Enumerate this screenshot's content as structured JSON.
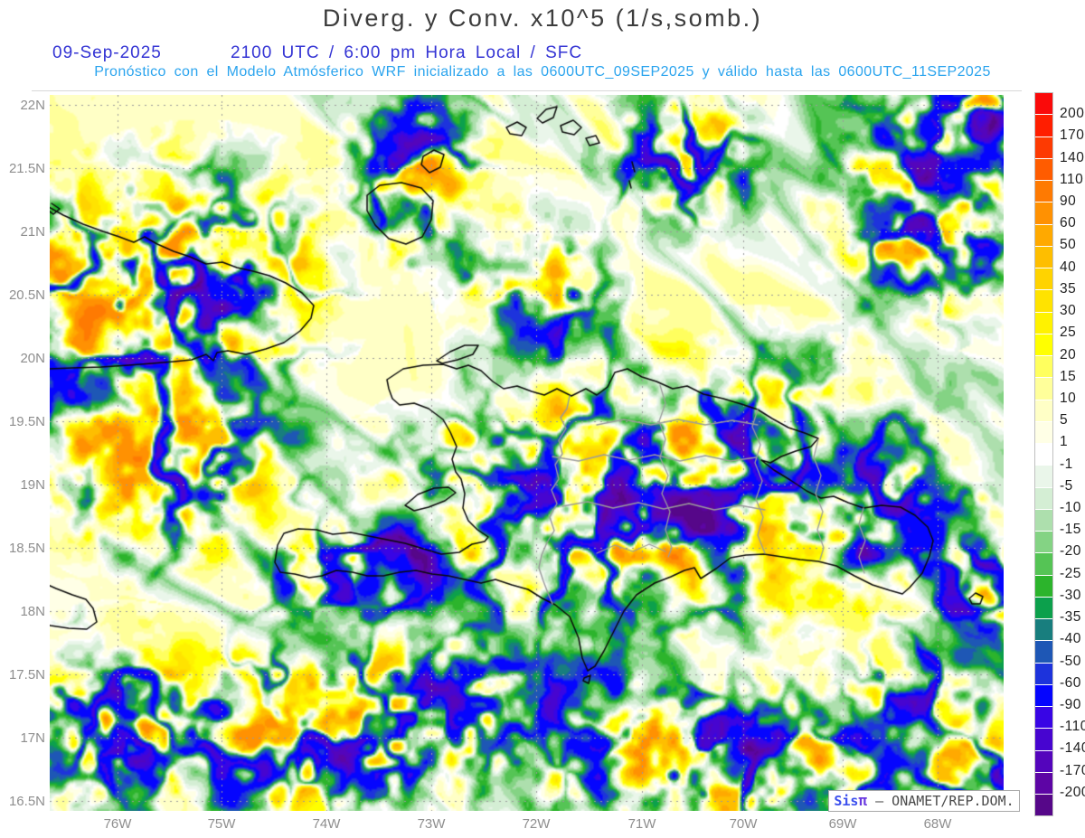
{
  "header": {
    "title": "Diverg. y Conv. x10^5 (1/s,somb.)",
    "date": "09-Sep-2025",
    "time_line": "2100 UTC / 6:00 pm Hora Local / SFC",
    "subtitle": "Pronóstico con el Modelo Atmósferico WRF inicializado a las 0600UTC_09SEP2025 y válido hasta las  0600UTC_11SEP2025",
    "title_color": "#3c3c3c",
    "time_color": "#3434d4",
    "subtitle_color": "#2ba4ee"
  },
  "chart_data": {
    "type": "heatmap",
    "title": "Diverg. y Conv. x10^5 (1/s,somb.)",
    "units": "x10^5 (1/s)",
    "level": "SFC",
    "valid_time": "2100 UTC / 6:00 pm Hora Local",
    "grid": "dotted",
    "legend_position": "right",
    "y_ticks": [
      "22N",
      "21.5N",
      "21N",
      "20.5N",
      "20N",
      "19.5N",
      "19N",
      "18.5N",
      "18N",
      "17.5N",
      "17N",
      "16.5N"
    ],
    "x_ticks": [
      "76W",
      "75W",
      "74W",
      "73W",
      "72W",
      "71W",
      "70W",
      "69W",
      "68W"
    ],
    "colorbar": {
      "labels": [
        200,
        170,
        140,
        110,
        90,
        60,
        50,
        40,
        35,
        30,
        25,
        20,
        15,
        10,
        5,
        1,
        -1,
        -5,
        -10,
        -15,
        -20,
        -25,
        -30,
        -35,
        -40,
        -50,
        -60,
        -90,
        -110,
        -140,
        -170,
        -200
      ],
      "colors": [
        "#fa0a0a",
        "#ff1e00",
        "#fd3a02",
        "#ff5c00",
        "#fe7a02",
        "#ff9102",
        "#ffa900",
        "#febe00",
        "#ffd300",
        "#ffe300",
        "#fff200",
        "#ffff00",
        "#ffff5e",
        "#ffff9a",
        "#ffffc6",
        "#ffffe6",
        "#ffffff",
        "#eaf6ea",
        "#d4eed4",
        "#addfad",
        "#84d384",
        "#55c455",
        "#2cb42c",
        "#0ca04c",
        "#187e7e",
        "#1e57b5",
        "#1d33dc",
        "#0505fe",
        "#3805e5",
        "#4705d0",
        "#5405bc",
        "#5d05a5",
        "#560789"
      ]
    }
  },
  "watermark": {
    "prefix": "Sis",
    "pi": "π",
    "suffix": "– ONAMET/REP.DOM."
  }
}
